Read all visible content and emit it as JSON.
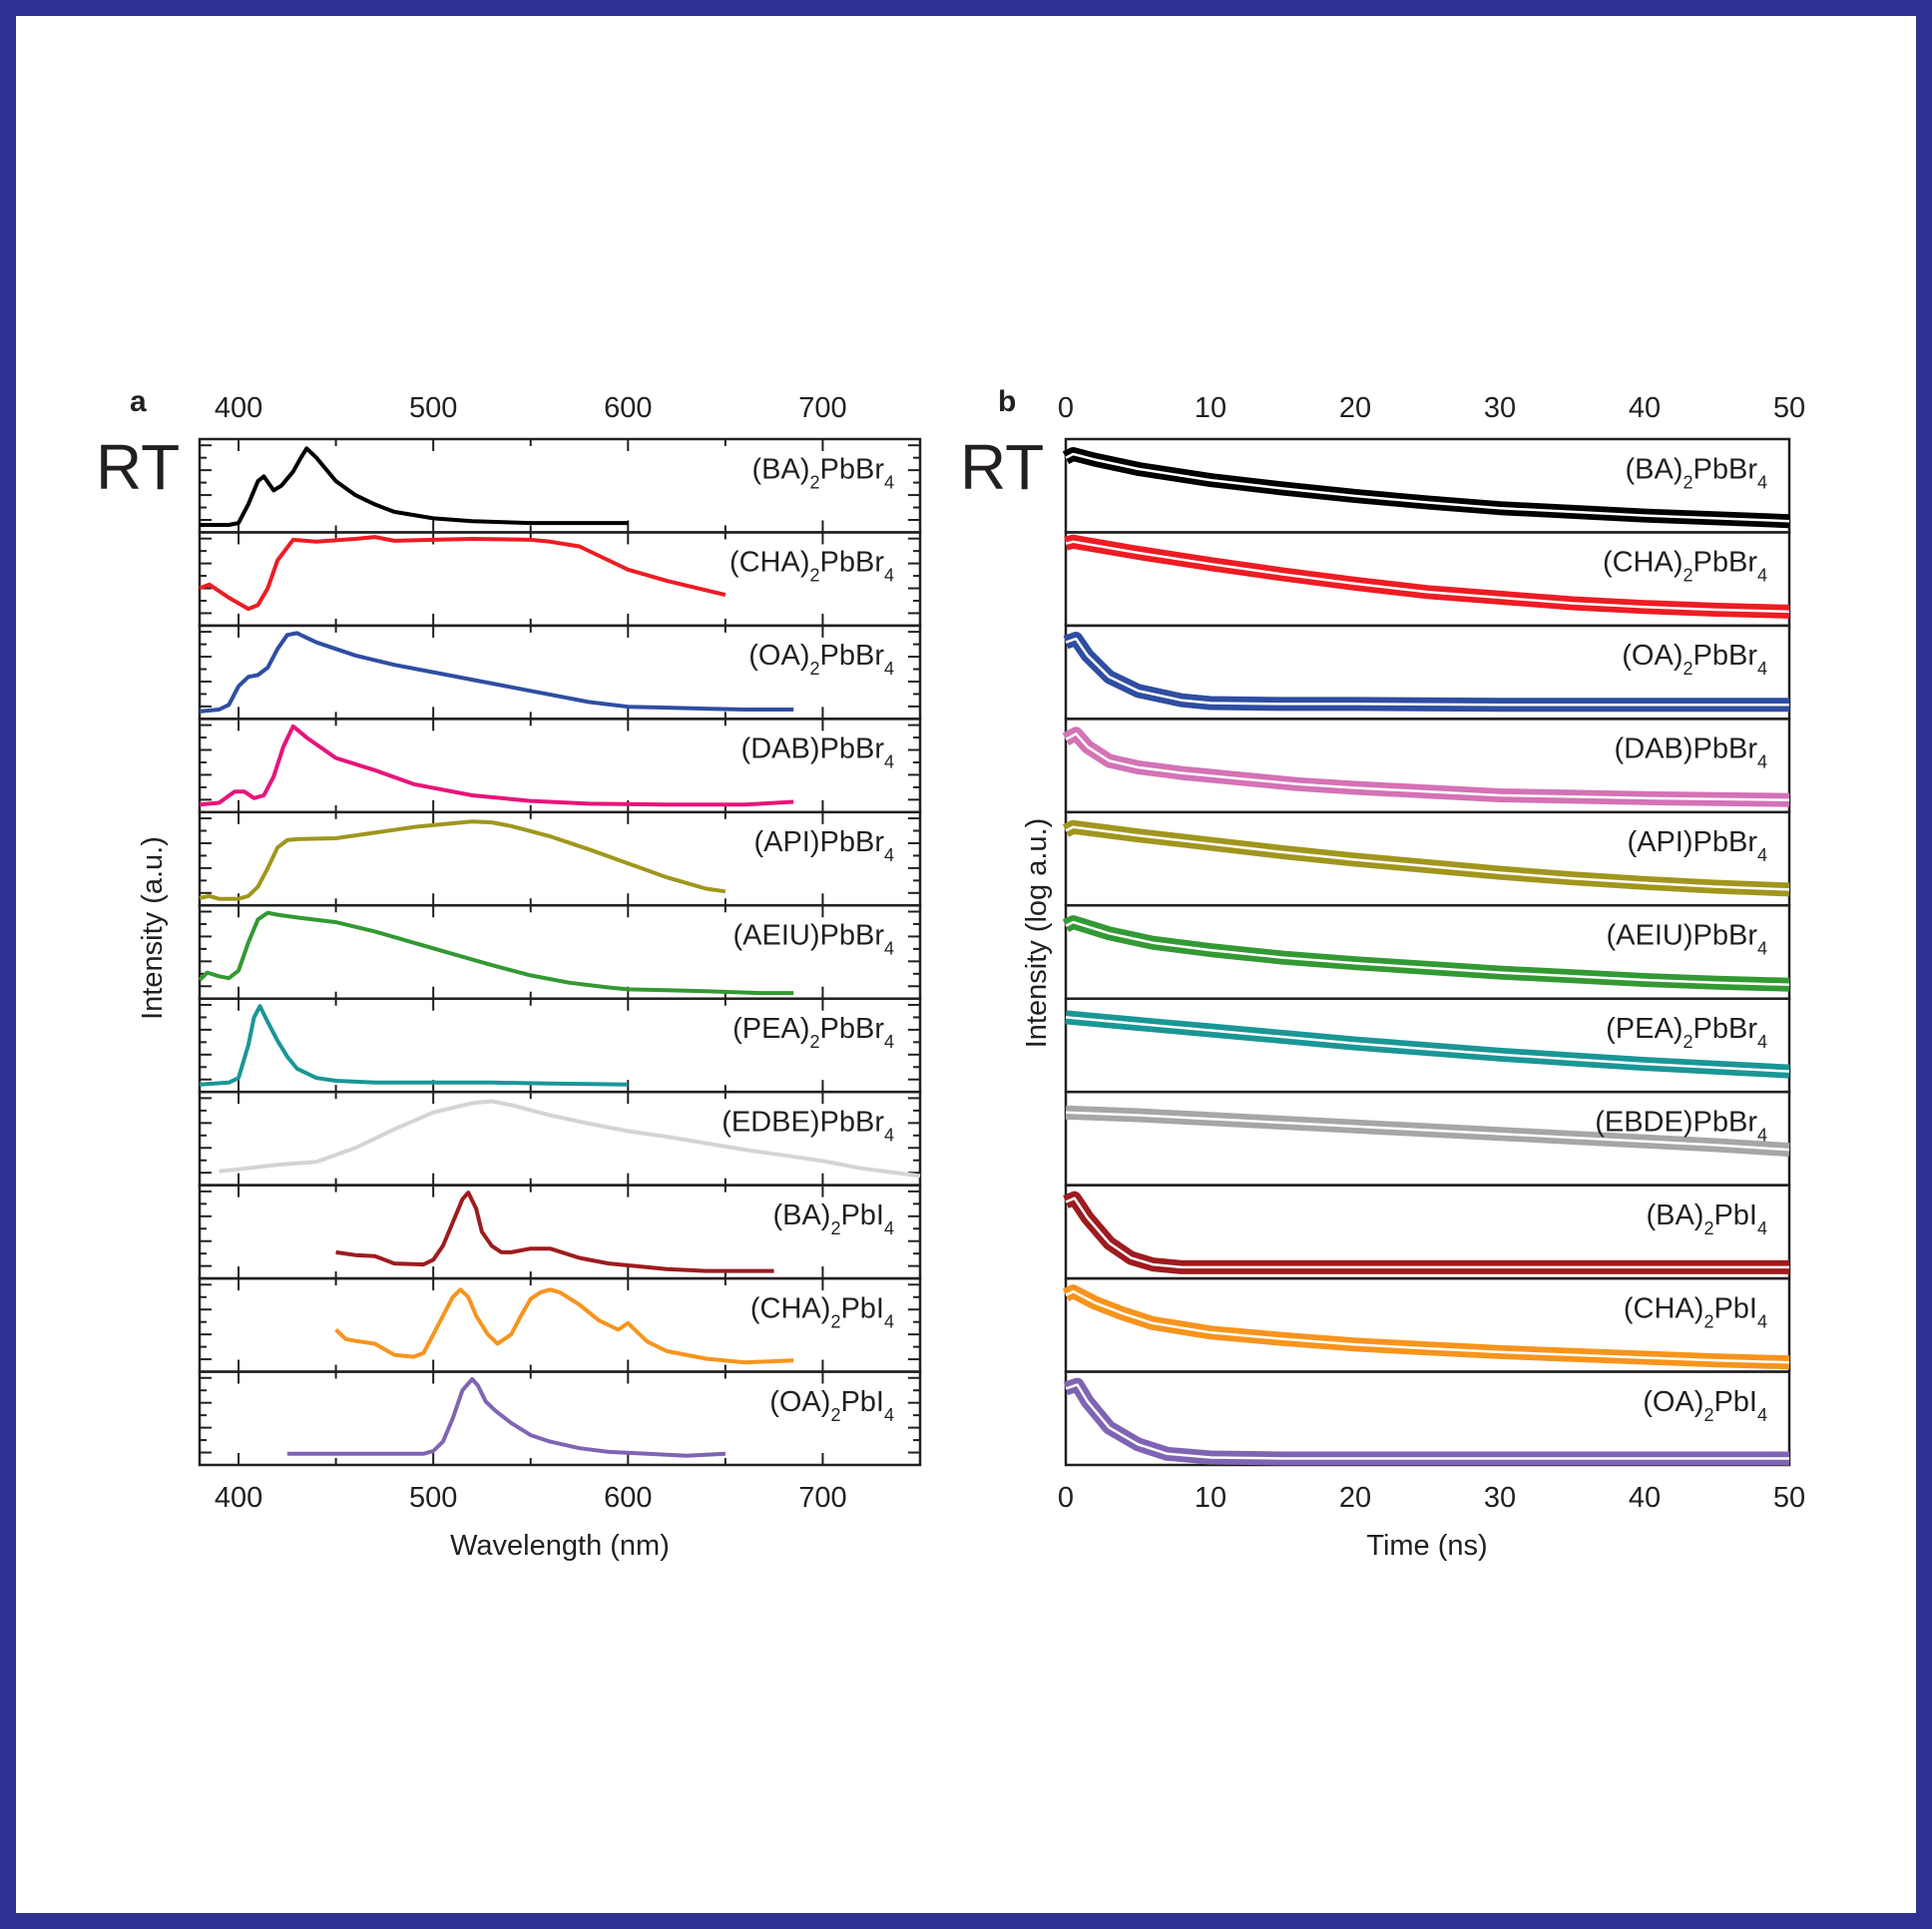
{
  "frame": {
    "border_color": "#2e3192"
  },
  "chart_data": [
    {
      "panel": "a",
      "type": "line",
      "title": "",
      "rt_label": "RT",
      "xlabel": "Wavelength (nm)",
      "ylabel": "Intensity (a.u.)",
      "xlim": [
        380,
        750
      ],
      "xticks": [
        400,
        500,
        600,
        700
      ],
      "xtick_labels": [
        "400",
        "500",
        "600",
        "700"
      ],
      "stacked": true,
      "ylim_per_panel": [
        0,
        1
      ],
      "series": [
        {
          "name": "(BA)2PbBr4",
          "label_main": "(BA)",
          "sub1": "2",
          "label_mid": "PbBr",
          "sub2": "4",
          "color": "#000000",
          "x": [
            380,
            395,
            400,
            405,
            410,
            413,
            418,
            422,
            428,
            432,
            435,
            440,
            450,
            460,
            470,
            480,
            500,
            520,
            550,
            580,
            600
          ],
          "y": [
            0.08,
            0.08,
            0.1,
            0.3,
            0.55,
            0.6,
            0.45,
            0.5,
            0.65,
            0.8,
            0.9,
            0.8,
            0.55,
            0.4,
            0.3,
            0.22,
            0.15,
            0.12,
            0.1,
            0.1,
            0.1
          ]
        },
        {
          "name": "(CHA)2PbBr4",
          "label_main": "(CHA)",
          "sub1": "2",
          "label_mid": "PbBr",
          "sub2": "4",
          "color": "#ed1c24",
          "x": [
            380,
            385,
            395,
            405,
            410,
            415,
            420,
            428,
            440,
            460,
            470,
            480,
            500,
            520,
            550,
            560,
            575,
            590,
            600,
            620,
            640,
            650
          ],
          "y": [
            0.4,
            0.44,
            0.3,
            0.18,
            0.22,
            0.4,
            0.7,
            0.92,
            0.9,
            0.93,
            0.95,
            0.91,
            0.92,
            0.93,
            0.92,
            0.9,
            0.85,
            0.7,
            0.6,
            0.48,
            0.38,
            0.33
          ]
        },
        {
          "name": "(OA)2PbBr4",
          "label_main": "(OA)",
          "sub1": "2",
          "label_mid": "PbBr",
          "sub2": "4",
          "color": "#2e4ea2",
          "x": [
            380,
            390,
            395,
            400,
            405,
            410,
            415,
            420,
            425,
            430,
            440,
            460,
            480,
            500,
            520,
            550,
            580,
            600,
            620,
            640,
            660,
            685
          ],
          "y": [
            0.08,
            0.1,
            0.15,
            0.35,
            0.45,
            0.47,
            0.55,
            0.75,
            0.9,
            0.92,
            0.82,
            0.68,
            0.58,
            0.5,
            0.42,
            0.3,
            0.18,
            0.13,
            0.12,
            0.11,
            0.1,
            0.1
          ]
        },
        {
          "name": "(DAB)PbBr4",
          "label_main": "(DAB)",
          "sub1": "",
          "label_mid": "PbBr",
          "sub2": "4",
          "color": "#e8147a",
          "x": [
            380,
            390,
            398,
            403,
            408,
            413,
            418,
            423,
            428,
            435,
            450,
            470,
            490,
            520,
            550,
            580,
            620,
            660,
            685
          ],
          "y": [
            0.08,
            0.1,
            0.22,
            0.22,
            0.15,
            0.18,
            0.38,
            0.7,
            0.92,
            0.8,
            0.58,
            0.45,
            0.3,
            0.18,
            0.12,
            0.09,
            0.08,
            0.08,
            0.11
          ]
        },
        {
          "name": "(API)PbBr4",
          "label_main": "(API)",
          "sub1": "",
          "label_mid": "PbBr",
          "sub2": "4",
          "color": "#a0961e",
          "x": [
            380,
            385,
            390,
            400,
            405,
            410,
            415,
            420,
            425,
            430,
            450,
            470,
            490,
            510,
            520,
            530,
            540,
            560,
            580,
            600,
            620,
            640,
            650
          ],
          "y": [
            0.08,
            0.1,
            0.07,
            0.07,
            0.1,
            0.2,
            0.4,
            0.62,
            0.7,
            0.71,
            0.72,
            0.78,
            0.84,
            0.88,
            0.9,
            0.89,
            0.85,
            0.74,
            0.6,
            0.45,
            0.3,
            0.18,
            0.15
          ]
        },
        {
          "name": "(AEIU)PbBr4",
          "label_main": "(AEIU)",
          "sub1": "",
          "label_mid": "PbBr",
          "sub2": "4",
          "color": "#339933",
          "x": [
            380,
            384,
            390,
            395,
            400,
            405,
            410,
            415,
            420,
            430,
            450,
            470,
            490,
            510,
            530,
            550,
            570,
            590,
            600,
            620,
            640,
            668,
            685
          ],
          "y": [
            0.2,
            0.28,
            0.24,
            0.22,
            0.3,
            0.6,
            0.85,
            0.92,
            0.9,
            0.87,
            0.82,
            0.72,
            0.6,
            0.48,
            0.36,
            0.25,
            0.17,
            0.12,
            0.1,
            0.09,
            0.08,
            0.06,
            0.06
          ]
        },
        {
          "name": "(PEA)2PbBr4",
          "label_main": "(PEA)",
          "sub1": "2",
          "label_mid": "PbBr",
          "sub2": "4",
          "color": "#1a9696",
          "x": [
            380,
            395,
            400,
            405,
            408,
            411,
            415,
            420,
            425,
            430,
            440,
            450,
            470,
            500,
            530,
            560,
            600
          ],
          "y": [
            0.08,
            0.1,
            0.15,
            0.5,
            0.8,
            0.92,
            0.75,
            0.55,
            0.38,
            0.25,
            0.15,
            0.12,
            0.1,
            0.1,
            0.1,
            0.09,
            0.08
          ]
        },
        {
          "name": "(EDBE)PbBr4",
          "label_main": "(EDBE)",
          "sub1": "",
          "label_mid": "PbBr",
          "sub2": "4",
          "color": "#d4d4d4",
          "x": [
            390,
            400,
            420,
            440,
            460,
            480,
            500,
            520,
            530,
            540,
            560,
            580,
            600,
            620,
            640,
            660,
            680,
            700,
            720,
            750
          ],
          "y": [
            0.15,
            0.17,
            0.22,
            0.25,
            0.4,
            0.6,
            0.78,
            0.88,
            0.9,
            0.86,
            0.75,
            0.66,
            0.58,
            0.52,
            0.45,
            0.38,
            0.32,
            0.26,
            0.18,
            0.1
          ]
        },
        {
          "name": "(BA)2PbI4",
          "label_main": "(BA)",
          "sub1": "2",
          "label_mid": "PbI",
          "sub2": "4",
          "color": "#9e1b1e",
          "x": [
            450,
            460,
            470,
            480,
            495,
            500,
            505,
            510,
            515,
            518,
            522,
            525,
            530,
            535,
            540,
            550,
            560,
            575,
            590,
            600,
            620,
            640,
            660,
            675
          ],
          "y": [
            0.28,
            0.25,
            0.24,
            0.16,
            0.15,
            0.2,
            0.35,
            0.6,
            0.85,
            0.92,
            0.75,
            0.5,
            0.35,
            0.28,
            0.28,
            0.32,
            0.32,
            0.22,
            0.16,
            0.14,
            0.1,
            0.08,
            0.08,
            0.08
          ]
        },
        {
          "name": "(CHA)2PbI4",
          "label_main": "(CHA)",
          "sub1": "2",
          "label_mid": "PbI",
          "sub2": "4",
          "color": "#f7941d",
          "x": [
            450,
            455,
            460,
            470,
            480,
            490,
            495,
            500,
            505,
            510,
            514,
            518,
            522,
            528,
            533,
            540,
            545,
            550,
            555,
            560,
            565,
            575,
            585,
            595,
            600,
            605,
            610,
            620,
            640,
            660,
            685
          ],
          "y": [
            0.45,
            0.35,
            0.33,
            0.3,
            0.18,
            0.16,
            0.2,
            0.4,
            0.6,
            0.8,
            0.88,
            0.8,
            0.6,
            0.4,
            0.3,
            0.4,
            0.6,
            0.78,
            0.85,
            0.88,
            0.85,
            0.72,
            0.55,
            0.45,
            0.52,
            0.42,
            0.32,
            0.22,
            0.14,
            0.1,
            0.12
          ]
        },
        {
          "name": "(OA)2PbI4",
          "label_main": "(OA)",
          "sub1": "2",
          "label_mid": "PbI",
          "sub2": "4",
          "color": "#8064b4",
          "x": [
            425,
            440,
            460,
            480,
            495,
            500,
            505,
            510,
            515,
            520,
            523,
            527,
            532,
            540,
            550,
            560,
            575,
            590,
            610,
            630,
            650
          ],
          "y": [
            0.12,
            0.12,
            0.12,
            0.12,
            0.12,
            0.15,
            0.25,
            0.5,
            0.8,
            0.92,
            0.85,
            0.68,
            0.58,
            0.45,
            0.32,
            0.25,
            0.18,
            0.14,
            0.12,
            0.1,
            0.12
          ]
        }
      ]
    },
    {
      "panel": "b",
      "type": "line",
      "title": "",
      "rt_label": "RT",
      "xlabel": "Time (ns)",
      "ylabel": "Intensity (log a.u.)",
      "xlim": [
        0,
        50
      ],
      "xticks": [
        0,
        10,
        20,
        30,
        40,
        50
      ],
      "xtick_labels": [
        "0",
        "10",
        "20",
        "30",
        "40",
        "50"
      ],
      "stacked": true,
      "fit_color": "#ffffff",
      "ylim_per_panel": [
        0,
        1
      ],
      "series": [
        {
          "name": "(BA)2PbBr4",
          "label_main": "(BA)",
          "sub1": "2",
          "label_mid": "PbBr",
          "sub2": "4",
          "color": "#000000",
          "x": [
            0,
            0.5,
            2,
            5,
            10,
            15,
            20,
            25,
            30,
            35,
            40,
            45,
            50
          ],
          "y": [
            0.8,
            0.84,
            0.78,
            0.68,
            0.56,
            0.47,
            0.39,
            0.32,
            0.26,
            0.22,
            0.18,
            0.15,
            0.12
          ]
        },
        {
          "name": "(CHA)2PbBr4",
          "label_main": "(CHA)",
          "sub1": "2",
          "label_mid": "PbBr",
          "sub2": "4",
          "color": "#ed1c24",
          "x": [
            0,
            0.5,
            5,
            10,
            15,
            20,
            25,
            30,
            35,
            40,
            45,
            50
          ],
          "y": [
            0.88,
            0.9,
            0.78,
            0.66,
            0.55,
            0.45,
            0.36,
            0.3,
            0.24,
            0.2,
            0.17,
            0.15
          ]
        },
        {
          "name": "(OA)2PbBr4",
          "label_main": "(OA)",
          "sub1": "2",
          "label_mid": "PbBr",
          "sub2": "4",
          "color": "#2e4ea2",
          "x": [
            0,
            0.7,
            1.5,
            3,
            5,
            8,
            10,
            15,
            20,
            30,
            40,
            50
          ],
          "y": [
            0.82,
            0.86,
            0.68,
            0.45,
            0.3,
            0.2,
            0.17,
            0.16,
            0.16,
            0.15,
            0.15,
            0.15
          ]
        },
        {
          "name": "(DAB)PbBr4",
          "label_main": "(DAB)",
          "sub1": "",
          "label_mid": "PbBr",
          "sub2": "4",
          "color": "#d472b6",
          "x": [
            0,
            0.7,
            1.5,
            3,
            5,
            8,
            12,
            16,
            20,
            25,
            30,
            40,
            50
          ],
          "y": [
            0.78,
            0.84,
            0.7,
            0.55,
            0.48,
            0.42,
            0.36,
            0.3,
            0.26,
            0.22,
            0.18,
            0.15,
            0.13
          ]
        },
        {
          "name": "(API)PbBr4",
          "label_main": "(API)",
          "sub1": "",
          "label_mid": "PbBr",
          "sub2": "4",
          "color": "#a0961e",
          "x": [
            0,
            0.5,
            5,
            10,
            15,
            20,
            25,
            30,
            35,
            40,
            45,
            50
          ],
          "y": [
            0.8,
            0.84,
            0.75,
            0.66,
            0.57,
            0.49,
            0.42,
            0.35,
            0.29,
            0.24,
            0.2,
            0.17
          ]
        },
        {
          "name": "(AEIU)PbBr4",
          "label_main": "(AEIU)",
          "sub1": "",
          "label_mid": "PbBr",
          "sub2": "4",
          "color": "#339933",
          "x": [
            0,
            0.5,
            3,
            6,
            10,
            15,
            20,
            25,
            30,
            35,
            40,
            45,
            50
          ],
          "y": [
            0.78,
            0.82,
            0.7,
            0.6,
            0.52,
            0.44,
            0.38,
            0.33,
            0.28,
            0.24,
            0.2,
            0.17,
            0.15
          ]
        },
        {
          "name": "(PEA)2PbBr4",
          "label_main": "(PEA)",
          "sub1": "2",
          "label_mid": "PbBr",
          "sub2": "4",
          "color": "#1a9696",
          "x": [
            0,
            5,
            10,
            15,
            20,
            25,
            30,
            35,
            40,
            45,
            50
          ],
          "y": [
            0.8,
            0.73,
            0.66,
            0.59,
            0.52,
            0.46,
            0.4,
            0.35,
            0.3,
            0.26,
            0.22
          ]
        },
        {
          "name": "(EBDE)PbBr4",
          "label_main": "(EBDE)",
          "sub1": "",
          "label_mid": "PbBr",
          "sub2": "4",
          "color": "#a6a6a6",
          "x": [
            0,
            5,
            10,
            15,
            20,
            25,
            30,
            35,
            40,
            45,
            50
          ],
          "y": [
            0.78,
            0.75,
            0.71,
            0.67,
            0.63,
            0.59,
            0.55,
            0.51,
            0.47,
            0.43,
            0.38
          ]
        },
        {
          "name": "(BA)2PbI4",
          "label_main": "(BA)",
          "sub1": "2",
          "label_mid": "PbI",
          "sub2": "4",
          "color": "#9e1b1e",
          "x": [
            0,
            0.6,
            1.5,
            3,
            4.5,
            6,
            8,
            15,
            25,
            35,
            50
          ],
          "y": [
            0.82,
            0.86,
            0.65,
            0.38,
            0.22,
            0.15,
            0.12,
            0.12,
            0.12,
            0.12,
            0.12
          ]
        },
        {
          "name": "(CHA)2PbI4",
          "label_main": "(CHA)",
          "sub1": "2",
          "label_mid": "PbI",
          "sub2": "4",
          "color": "#f7941d",
          "x": [
            0,
            0.5,
            2,
            4,
            6,
            10,
            15,
            20,
            25,
            30,
            35,
            40,
            45,
            50
          ],
          "y": [
            0.82,
            0.86,
            0.74,
            0.62,
            0.52,
            0.42,
            0.35,
            0.29,
            0.25,
            0.21,
            0.18,
            0.15,
            0.12,
            0.1
          ]
        },
        {
          "name": "(OA)2PbI4",
          "label_main": "(OA)",
          "sub1": "2",
          "label_mid": "PbI",
          "sub2": "4",
          "color": "#8064b4",
          "x": [
            0,
            0.8,
            1.5,
            3,
            5,
            7,
            10,
            15,
            25,
            35,
            50
          ],
          "y": [
            0.82,
            0.86,
            0.68,
            0.4,
            0.22,
            0.12,
            0.08,
            0.07,
            0.07,
            0.07,
            0.07
          ]
        }
      ]
    }
  ]
}
